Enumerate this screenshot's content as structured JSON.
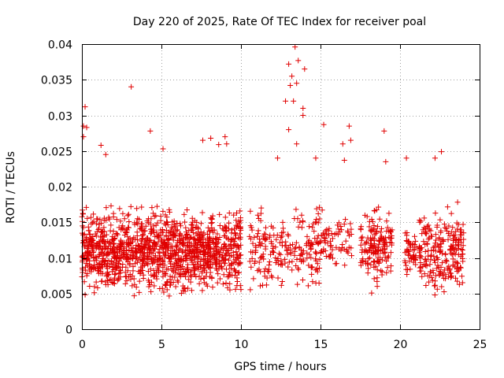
{
  "chart_data": {
    "type": "scatter",
    "title": "Day 220 of 2025, Rate Of TEC Index for receiver poal",
    "xlabel": "GPS time / hours",
    "ylabel": "ROTI / TECUs",
    "xlim": [
      0,
      25
    ],
    "ylim": [
      0,
      0.04
    ],
    "grid": true,
    "marker": "plus",
    "series_color": "#e00000",
    "x_ticks": [
      "0",
      "5",
      "10",
      "15",
      "20",
      "25"
    ],
    "y_ticks": [
      "0",
      "0.005",
      "0.01",
      "0.015",
      "0.02",
      "0.025",
      "0.03",
      "0.035",
      "0.04"
    ],
    "clusters": [
      {
        "x_range": [
          0.0,
          10.0
        ],
        "y_range": [
          0.005,
          0.02
        ],
        "count": 1300
      },
      {
        "x_range": [
          10.5,
          15.0
        ],
        "y_range": [
          0.006,
          0.02
        ],
        "count": 220
      },
      {
        "x_range": [
          15.0,
          17.0
        ],
        "y_range": [
          0.009,
          0.019
        ],
        "count": 70
      },
      {
        "x_range": [
          17.5,
          19.5
        ],
        "y_range": [
          0.006,
          0.02
        ],
        "count": 160
      },
      {
        "x_range": [
          20.3,
          21.0
        ],
        "y_range": [
          0.008,
          0.016
        ],
        "count": 50
      },
      {
        "x_range": [
          21.2,
          24.0
        ],
        "y_range": [
          0.005,
          0.02
        ],
        "count": 230
      }
    ],
    "outliers": [
      {
        "x": 0.1,
        "y": 0.0285
      },
      {
        "x": 0.1,
        "y": 0.027
      },
      {
        "x": 0.2,
        "y": 0.0312
      },
      {
        "x": 0.3,
        "y": 0.0283
      },
      {
        "x": 1.2,
        "y": 0.0258
      },
      {
        "x": 1.5,
        "y": 0.0245
      },
      {
        "x": 3.1,
        "y": 0.034
      },
      {
        "x": 4.3,
        "y": 0.0278
      },
      {
        "x": 5.1,
        "y": 0.0253
      },
      {
        "x": 7.6,
        "y": 0.0265
      },
      {
        "x": 8.1,
        "y": 0.0268
      },
      {
        "x": 8.6,
        "y": 0.0259
      },
      {
        "x": 9.0,
        "y": 0.027
      },
      {
        "x": 9.1,
        "y": 0.026
      },
      {
        "x": 13.0,
        "y": 0.0372
      },
      {
        "x": 13.2,
        "y": 0.0355
      },
      {
        "x": 13.4,
        "y": 0.0396
      },
      {
        "x": 13.6,
        "y": 0.0377
      },
      {
        "x": 13.5,
        "y": 0.0345
      },
      {
        "x": 13.1,
        "y": 0.0342
      },
      {
        "x": 14.0,
        "y": 0.0365
      },
      {
        "x": 12.8,
        "y": 0.032
      },
      {
        "x": 13.3,
        "y": 0.032
      },
      {
        "x": 13.9,
        "y": 0.031
      },
      {
        "x": 13.9,
        "y": 0.03
      },
      {
        "x": 13.0,
        "y": 0.028
      },
      {
        "x": 13.5,
        "y": 0.026
      },
      {
        "x": 15.2,
        "y": 0.0287
      },
      {
        "x": 16.4,
        "y": 0.026
      },
      {
        "x": 16.8,
        "y": 0.0285
      },
      {
        "x": 16.9,
        "y": 0.0265
      },
      {
        "x": 16.5,
        "y": 0.0237
      },
      {
        "x": 19.0,
        "y": 0.0278
      },
      {
        "x": 19.1,
        "y": 0.0235
      },
      {
        "x": 20.4,
        "y": 0.024
      },
      {
        "x": 22.6,
        "y": 0.0249
      },
      {
        "x": 22.2,
        "y": 0.024
      },
      {
        "x": 12.3,
        "y": 0.024
      },
      {
        "x": 14.7,
        "y": 0.024
      }
    ]
  }
}
